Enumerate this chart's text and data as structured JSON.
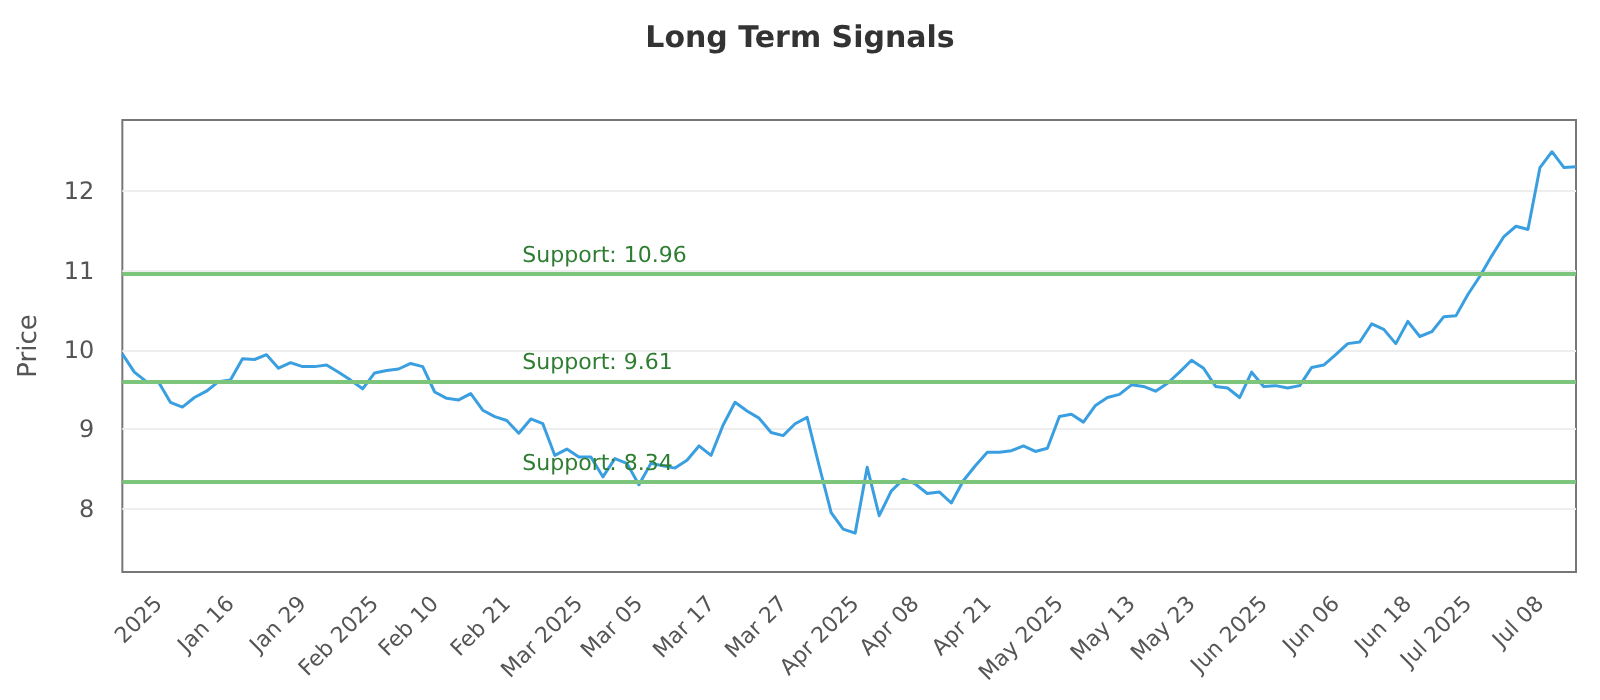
{
  "chart_data": {
    "type": "line",
    "title": "Long Term Signals",
    "ylabel": "Price",
    "categories": [
      null,
      null,
      null,
      "2025",
      null,
      null,
      null,
      null,
      null,
      "Jan 16",
      null,
      null,
      null,
      null,
      null,
      "Jan 29",
      null,
      null,
      null,
      null,
      null,
      "Feb 2025",
      null,
      null,
      null,
      null,
      "Feb 10",
      null,
      null,
      null,
      null,
      null,
      "Feb 21",
      null,
      null,
      null,
      null,
      null,
      "Mar 2025",
      null,
      null,
      null,
      null,
      "Mar 05",
      null,
      null,
      null,
      null,
      null,
      "Mar 17",
      null,
      null,
      null,
      null,
      null,
      "Mar 27",
      null,
      null,
      null,
      null,
      null,
      "Apr 2025",
      null,
      null,
      null,
      null,
      "Apr 08",
      null,
      null,
      null,
      null,
      null,
      "Apr 21",
      null,
      null,
      null,
      null,
      null,
      "May 2025",
      null,
      null,
      null,
      null,
      null,
      "May 13",
      null,
      null,
      null,
      null,
      "May 23",
      null,
      null,
      null,
      null,
      null,
      "Jun 2025",
      null,
      null,
      null,
      null,
      null,
      "Jun 06",
      null,
      null,
      null,
      null,
      null,
      "Jun 18",
      null,
      null,
      null,
      null,
      "Jul 2025",
      null,
      null,
      null,
      null,
      null,
      "Jul 08",
      null,
      null,
      null
    ],
    "series": [
      {
        "color": "#3a9fe0",
        "values": [
          9.95,
          9.72,
          9.6,
          9.6,
          9.34,
          9.28,
          9.4,
          9.48,
          9.6,
          9.62,
          9.89,
          9.88,
          9.94,
          9.77,
          9.84,
          9.79,
          9.79,
          9.81,
          9.72,
          9.62,
          9.51,
          9.71,
          9.74,
          9.76,
          9.83,
          9.79,
          9.47,
          9.39,
          9.37,
          9.45,
          9.24,
          9.16,
          9.11,
          8.95,
          9.13,
          9.07,
          8.67,
          8.75,
          8.65,
          8.65,
          8.4,
          8.63,
          8.57,
          8.3,
          8.57,
          8.54,
          8.51,
          8.61,
          8.79,
          8.67,
          9.05,
          9.34,
          9.23,
          9.14,
          8.96,
          8.92,
          9.07,
          9.15,
          8.54,
          7.95,
          7.74,
          7.69,
          8.52,
          7.91,
          8.22,
          8.37,
          8.31,
          8.19,
          8.21,
          8.07,
          8.35,
          8.54,
          8.71,
          8.71,
          8.73,
          8.79,
          8.72,
          8.76,
          9.16,
          9.19,
          9.09,
          9.3,
          9.4,
          9.44,
          9.56,
          9.54,
          9.48,
          9.58,
          9.72,
          9.87,
          9.77,
          9.54,
          9.52,
          9.4,
          9.72,
          9.54,
          9.55,
          9.52,
          9.55,
          9.78,
          9.81,
          9.94,
          10.08,
          10.1,
          10.33,
          10.26,
          10.08,
          10.36,
          10.17,
          10.23,
          10.42,
          10.43,
          10.7,
          10.93,
          11.19,
          11.43,
          11.56,
          11.52,
          12.3,
          12.5,
          12.3,
          12.31
        ]
      }
    ],
    "ylim": [
      7.2,
      12.9
    ],
    "yticks": [
      8,
      9,
      10,
      11,
      12
    ],
    "grid": "y",
    "ref_lines": [
      {
        "axis": "y",
        "value": 10.96,
        "label": "Support: 10.96",
        "color": "#7dc57d"
      },
      {
        "axis": "y",
        "value": 9.61,
        "label": "Support: 9.61",
        "color": "#7dc57d"
      },
      {
        "axis": "y",
        "value": 8.34,
        "label": "Support: 8.34",
        "color": "#7dc57d"
      }
    ]
  }
}
